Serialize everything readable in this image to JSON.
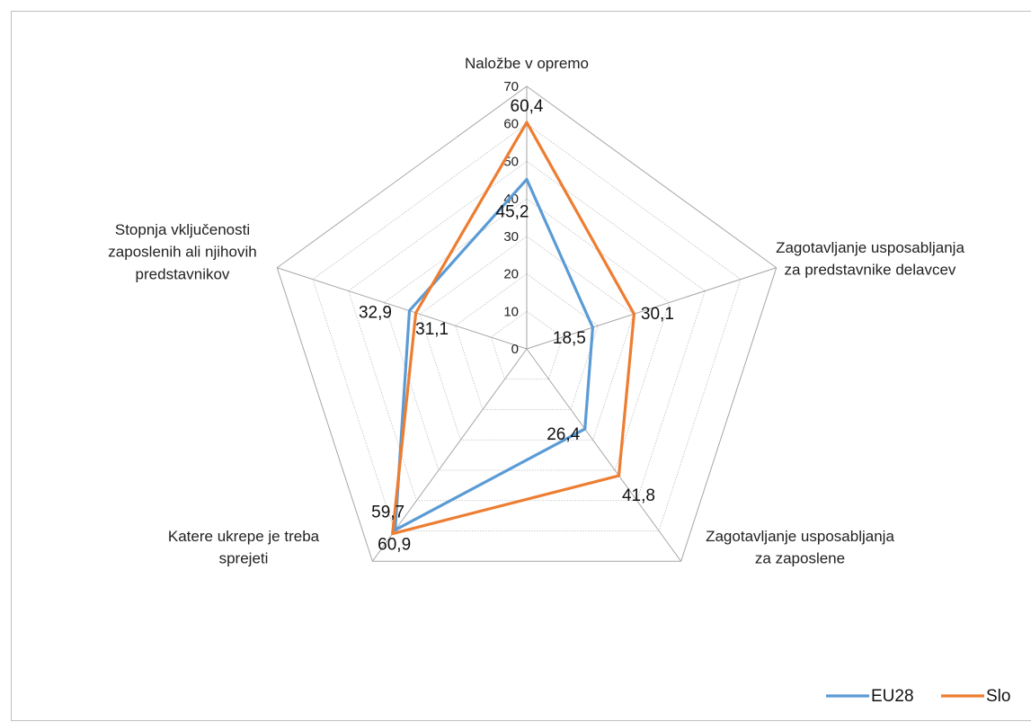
{
  "chart_data": {
    "type": "radar",
    "categories": [
      "Naložbe v opremo",
      "Zagotavljanje usposabljanja za predstavnike delavcev",
      "Zagotavljanje usposabljanja za zaposlene",
      "Katere ukrepe je treba sprejeti",
      "Stopnja vključenosti zaposlenih ali njihovih predstavnikov"
    ],
    "category_lines": [
      [
        "Naložbe v opremo"
      ],
      [
        "Zagotavljanje usposabljanja",
        "za predstavnike delavcev"
      ],
      [
        "Zagotavljanje usposabljanja",
        "za zaposlene"
      ],
      [
        "Katere ukrepe je treba",
        "sprejeti"
      ],
      [
        "Stopnja vključenosti",
        "zaposlenih ali njihovih",
        "predstavnikov"
      ]
    ],
    "rlim": [
      0,
      70
    ],
    "ticks": [
      0,
      10,
      20,
      30,
      40,
      50,
      60,
      70
    ],
    "series": [
      {
        "name": "EU28",
        "color": "#5b9bd5",
        "values": [
          45.2,
          18.5,
          26.4,
          59.7,
          32.9
        ],
        "labels": [
          "45,2",
          "18,5",
          "26,4",
          "59,7",
          "32,9"
        ]
      },
      {
        "name": "Slo",
        "color": "#ed7d31",
        "values": [
          60.4,
          30.1,
          41.8,
          60.9,
          31.1
        ],
        "labels": [
          "60,4",
          "30,1",
          "41,8",
          "60,9",
          "31,1"
        ]
      }
    ],
    "grid": true,
    "legend": "bottom-right"
  }
}
